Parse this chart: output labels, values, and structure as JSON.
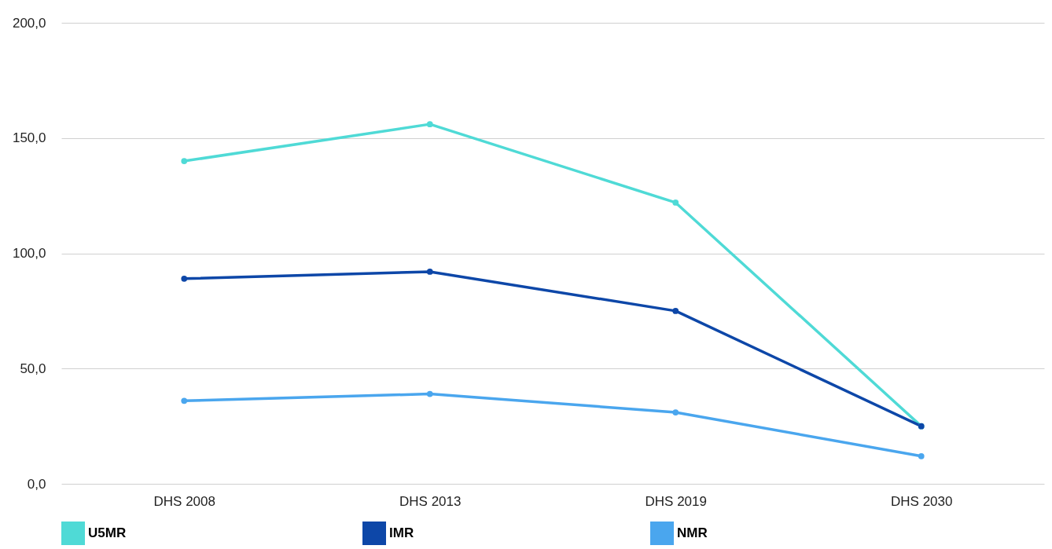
{
  "chart_data": {
    "type": "line",
    "categories": [
      "DHS 2008",
      "DHS 2013",
      "DHS 2019",
      "DHS 2030"
    ],
    "series": [
      {
        "name": "U5MR",
        "color": "#4fdad6",
        "values": [
          140,
          156,
          122,
          25
        ]
      },
      {
        "name": "IMR",
        "color": "#0d47a8",
        "values": [
          89,
          92,
          75,
          25
        ]
      },
      {
        "name": "NMR",
        "color": "#4aa6ee",
        "values": [
          36,
          39,
          31,
          12
        ]
      }
    ],
    "ylim": [
      0,
      200
    ],
    "yticks": [
      {
        "value": 0,
        "label": "0,0"
      },
      {
        "value": 50,
        "label": "50,0"
      },
      {
        "value": 100,
        "label": "100,0"
      },
      {
        "value": 150,
        "label": "150,0"
      },
      {
        "value": 200,
        "label": "200,0"
      }
    ],
    "grid": "y",
    "legend": "bottom",
    "marker": "circle",
    "line_style": "solid"
  }
}
